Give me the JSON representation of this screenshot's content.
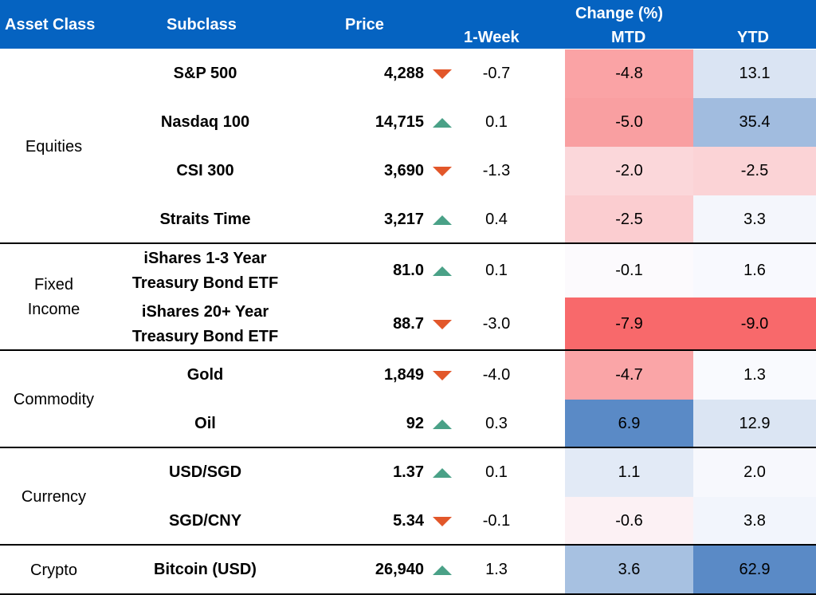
{
  "header": {
    "asset_class": "Asset Class",
    "subclass": "Subclass",
    "price": "Price",
    "change": "Change (%)",
    "week": "1-Week",
    "mtd": "MTD",
    "ytd": "YTD"
  },
  "groups": [
    {
      "label": "Equities"
    },
    {
      "label": "Fixed Income"
    },
    {
      "label": "Commodity"
    },
    {
      "label": "Currency"
    },
    {
      "label": "Crypto"
    }
  ],
  "rows": [
    {
      "subclass": "S&P 500",
      "price": "4,288",
      "direction": "down",
      "week": "-0.7",
      "mtd": "-4.8",
      "ytd": "13.1"
    },
    {
      "subclass": "Nasdaq 100",
      "price": "14,715",
      "direction": "up",
      "week": "0.1",
      "mtd": "-5.0",
      "ytd": "35.4"
    },
    {
      "subclass": "CSI 300",
      "price": "3,690",
      "direction": "down",
      "week": "-1.3",
      "mtd": "-2.0",
      "ytd": "-2.5"
    },
    {
      "subclass": "Straits Time",
      "price": "3,217",
      "direction": "up",
      "week": "0.4",
      "mtd": "-2.5",
      "ytd": "3.3"
    },
    {
      "subclass": "iShares 1-3 Year Treasury Bond ETF",
      "price": "81.0",
      "direction": "up",
      "week": "0.1",
      "mtd": "-0.1",
      "ytd": "1.6"
    },
    {
      "subclass": "iShares 20+ Year Treasury Bond ETF",
      "price": "88.7",
      "direction": "down",
      "week": "-3.0",
      "mtd": "-7.9",
      "ytd": "-9.0"
    },
    {
      "subclass": "Gold",
      "price": "1,849",
      "direction": "down",
      "week": "-4.0",
      "mtd": "-4.7",
      "ytd": "1.3"
    },
    {
      "subclass": "Oil",
      "price": "92",
      "direction": "up",
      "week": "0.3",
      "mtd": "6.9",
      "ytd": "12.9"
    },
    {
      "subclass": "USD/SGD",
      "price": "1.37",
      "direction": "up",
      "week": "0.1",
      "mtd": "1.1",
      "ytd": "2.0"
    },
    {
      "subclass": "SGD/CNY",
      "price": "5.34",
      "direction": "down",
      "week": "-0.1",
      "mtd": "-0.6",
      "ytd": "3.8"
    },
    {
      "subclass": "Bitcoin (USD)",
      "price": "26,940",
      "direction": "up",
      "week": "1.3",
      "mtd": "3.6",
      "ytd": "62.9"
    }
  ],
  "colors": {
    "header_bg": "#0563c1",
    "header_text": "#ffffff",
    "arrow_up": "#4aa187",
    "arrow_down": "#e2572a",
    "heat_negative": "#f8696b",
    "heat_positive": "#5a8ac6",
    "heat_neutral": "#fcfcff"
  }
}
